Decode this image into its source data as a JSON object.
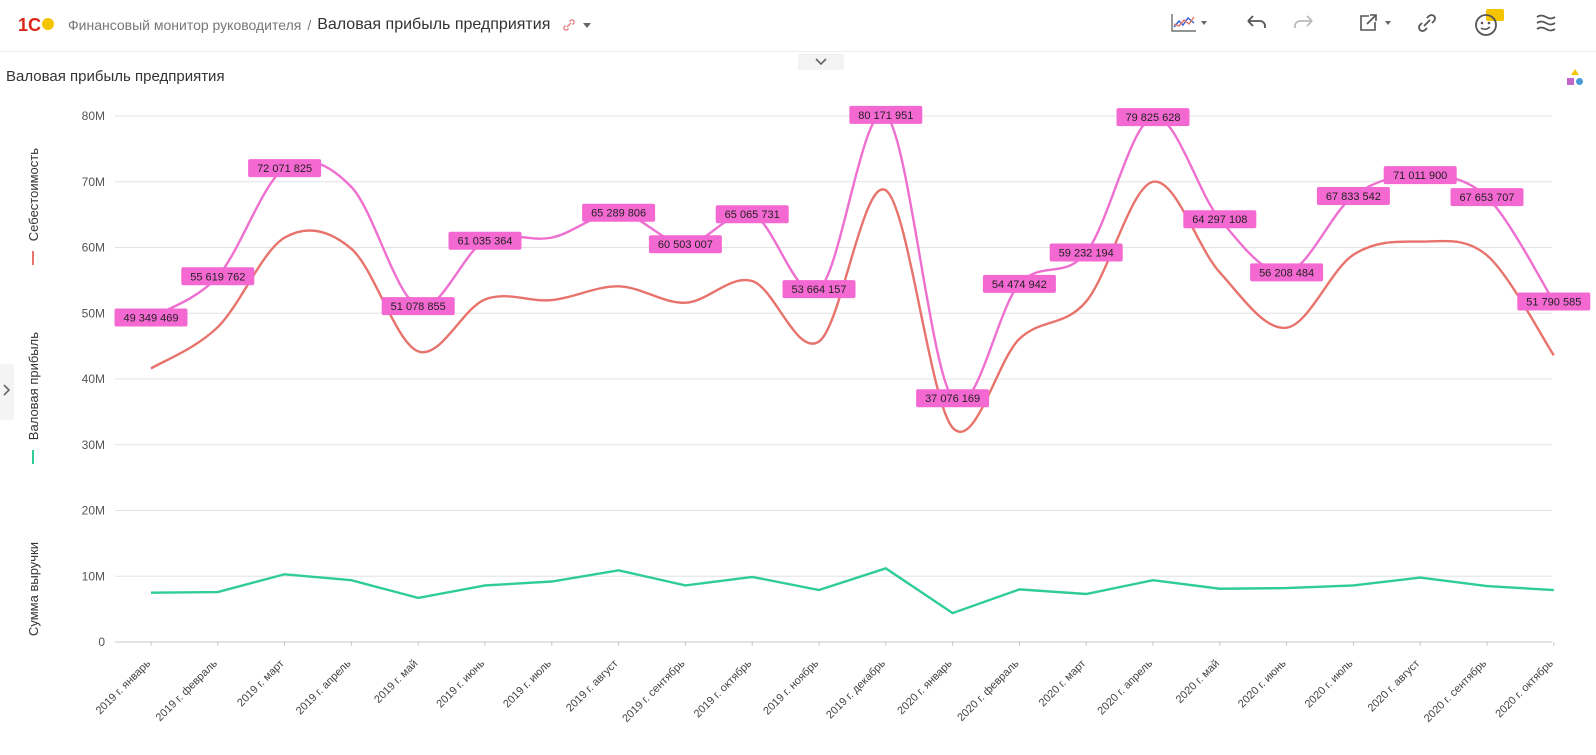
{
  "header": {
    "logo_text": "1С",
    "breadcrumb_parent": "Финансовый монитор руководителя",
    "breadcrumb_separator": "/",
    "breadcrumb_current": "Валовая прибыль предприятия",
    "icons": [
      "chart-type-icon",
      "undo-icon",
      "redo-icon",
      "export-icon",
      "link-icon",
      "assistant-icon",
      "menu-icon"
    ]
  },
  "page": {
    "title": "Валовая прибыль предприятия"
  },
  "legend": [
    {
      "name": "Себестоимость",
      "color": "#e8736c"
    },
    {
      "name": "Валовая прибыль",
      "color": "#2fcc9a"
    },
    {
      "name": "Сумма выручки",
      "color": "#ef6fd0"
    }
  ],
  "colors": {
    "cost": "#e8736c",
    "profit": "#2fcc9a",
    "revenue": "#ef6fd0",
    "label_bg": "#f468d2",
    "accent": "#f5c400"
  },
  "chart_data": {
    "type": "line",
    "title": "Валовая прибыль предприятия",
    "ylim": [
      0,
      80000000
    ],
    "yticks": [
      "0",
      "10M",
      "20M",
      "30M",
      "40M",
      "50M",
      "60M",
      "70M",
      "80M"
    ],
    "grid": true,
    "categories": [
      "2019 г. январь",
      "2019 г. февраль",
      "2019 г. март",
      "2019 г. апрель",
      "2019 г. май",
      "2019 г. июнь",
      "2019 г. июль",
      "2019 г. август",
      "2019 г. сентябрь",
      "2019 г. октябрь",
      "2019 г. ноябрь",
      "2019 г. декабрь",
      "2020 г. январь",
      "2020 г. февраль",
      "2020 г. март",
      "2020 г. апрель",
      "2020 г. май",
      "2020 г. июнь",
      "2020 г. июль",
      "2020 г. август",
      "2020 г. сентябрь",
      "2020 г. октябрь"
    ],
    "series": [
      {
        "name": "Сумма выручки",
        "color": "#ef6fd0",
        "values": [
          49349469,
          55619762,
          72071825,
          69200000,
          51078855,
          61035364,
          61500000,
          65289806,
          60503007,
          65065731,
          53664157,
          80171951,
          37076169,
          54474942,
          59232194,
          79825628,
          64297108,
          56208484,
          67833542,
          71011900,
          67653707,
          51790585
        ],
        "labels": [
          "49 349 469",
          "55 619 762",
          "72 071 825",
          "",
          "51 078 855",
          "61 035 364",
          "",
          "65 289 806",
          "60 503 007",
          "65 065 731",
          "53 664 157",
          "80 171 951",
          "37 076 169",
          "54 474 942",
          "59 232 194",
          "79 825 628",
          "64 297 108",
          "56 208 484",
          "67 833 542",
          "71 011 900",
          "67 653 707",
          "51 790 585"
        ]
      },
      {
        "name": "Себестоимость",
        "color": "#e8736c",
        "values": [
          41600000,
          47900000,
          61500000,
          59800000,
          44200000,
          52100000,
          52000000,
          54100000,
          51600000,
          54900000,
          45700000,
          68700000,
          32600000,
          46100000,
          51800000,
          70000000,
          56200000,
          47800000,
          58900000,
          60900000,
          58800000,
          43600000
        ]
      },
      {
        "name": "Валовая прибыль",
        "color": "#2fcc9a",
        "values": [
          7500000,
          7600000,
          10300000,
          9400000,
          6700000,
          8600000,
          9200000,
          10900000,
          8600000,
          9900000,
          7900000,
          11200000,
          4400000,
          8000000,
          7300000,
          9400000,
          8100000,
          8200000,
          8600000,
          9800000,
          8500000,
          7900000
        ]
      }
    ]
  }
}
